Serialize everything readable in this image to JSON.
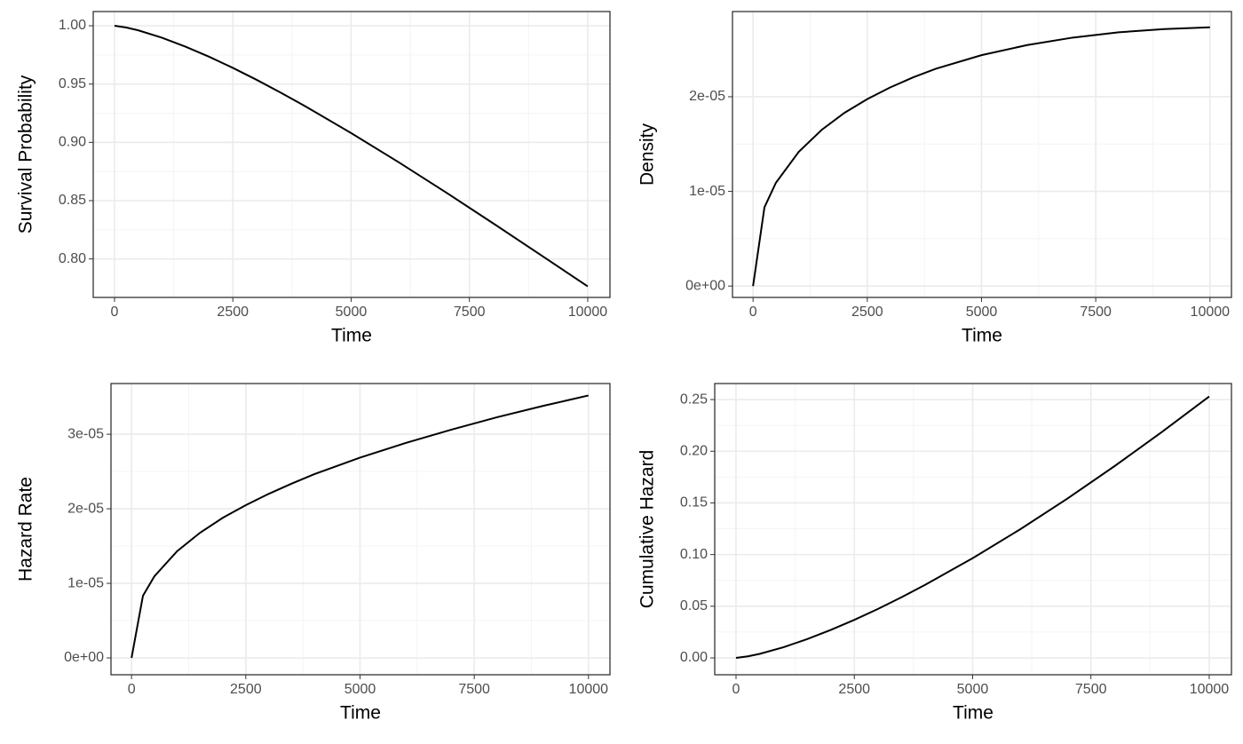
{
  "chart_data": [
    {
      "type": "line",
      "xlabel": "Time",
      "ylabel": "Survival Probability",
      "x": [
        0,
        250,
        500,
        1000,
        1500,
        2000,
        2500,
        3000,
        3500,
        4000,
        5000,
        6000,
        7000,
        8000,
        9000,
        10000
      ],
      "values": [
        1,
        0.9985,
        0.9961,
        0.9898,
        0.9821,
        0.9734,
        0.9639,
        0.9537,
        0.9429,
        0.9317,
        0.908,
        0.8831,
        0.8572,
        0.8306,
        0.8036,
        0.7765
      ],
      "color": "#000000",
      "grid": true,
      "xlim": [
        -450,
        10470
      ],
      "xticks": [
        0,
        2500,
        5000,
        7500,
        10000
      ],
      "ylim": [
        0.767,
        1.0122
      ],
      "yticks": [
        {
          "value": 0.8,
          "label": "0.80"
        },
        0.85,
        {
          "value": 0.9,
          "label": "0.90"
        },
        0.95,
        {
          "value": 1,
          "label": "1.00"
        }
      ]
    },
    {
      "type": "line",
      "xlabel": "Time",
      "ylabel": "Density",
      "x": [
        0,
        250,
        500,
        1000,
        1500,
        2000,
        2500,
        3000,
        3500,
        4000,
        5000,
        6000,
        7000,
        8000,
        9000,
        10000
      ],
      "values": [
        0,
        8.33e-06,
        1.091e-05,
        1.418e-05,
        1.649e-05,
        1.83e-05,
        1.975e-05,
        2.098e-05,
        2.204e-05,
        2.296e-05,
        2.439e-05,
        2.546e-05,
        2.625e-05,
        2.681e-05,
        2.715e-05,
        2.733e-05
      ],
      "color": "#000000",
      "grid": true,
      "xlim": [
        -450,
        10470
      ],
      "xticks": [
        0,
        2500,
        5000,
        7500,
        10000
      ],
      "ylim": [
        -1.2e-06,
        2.9e-05
      ],
      "yticks": [
        {
          "value": 0,
          "label": "0e+00"
        },
        {
          "value": 1e-05,
          "label": "1e-05"
        },
        {
          "value": 2e-05,
          "label": "2e-05"
        }
      ]
    },
    {
      "type": "line",
      "xlabel": "Time",
      "ylabel": "Hazard Rate",
      "x": [
        0,
        250,
        500,
        1000,
        1500,
        2000,
        2500,
        3000,
        3500,
        4000,
        5000,
        6000,
        7000,
        8000,
        9000,
        10000
      ],
      "values": [
        0,
        8.34e-06,
        1.095e-05,
        1.433e-05,
        1.679e-05,
        1.88e-05,
        2.049e-05,
        2.2e-05,
        2.337e-05,
        2.464e-05,
        2.686e-05,
        2.883e-05,
        3.062e-05,
        3.228e-05,
        3.379e-05,
        3.52e-05
      ],
      "color": "#000000",
      "grid": true,
      "xlim": [
        -450,
        10470
      ],
      "xticks": [
        0,
        2500,
        5000,
        7500,
        10000
      ],
      "ylim": [
        -2.26e-06,
        3.68e-05
      ],
      "yticks": [
        {
          "value": 0,
          "label": "0e+00"
        },
        {
          "value": 1e-05,
          "label": "1e-05"
        },
        {
          "value": 2e-05,
          "label": "2e-05"
        },
        {
          "value": 3e-05,
          "label": "3e-05"
        }
      ]
    },
    {
      "type": "line",
      "xlabel": "Time",
      "ylabel": "Cumulative Hazard",
      "x": [
        0,
        250,
        500,
        1000,
        1500,
        2000,
        2500,
        3000,
        3500,
        4000,
        5000,
        6000,
        7000,
        8000,
        9000,
        10000
      ],
      "values": [
        0,
        0.0015,
        0.0039,
        0.0103,
        0.0181,
        0.027,
        0.0368,
        0.0474,
        0.0588,
        0.0708,
        0.0965,
        0.1243,
        0.1541,
        0.1856,
        0.2186,
        0.253
      ],
      "color": "#000000",
      "grid": true,
      "xlim": [
        -450,
        10470
      ],
      "xticks": [
        0,
        2500,
        5000,
        7500,
        10000
      ],
      "ylim": [
        -0.0163,
        0.2655
      ],
      "yticks": [
        {
          "value": 0,
          "label": "0.00"
        },
        0.05,
        {
          "value": 0.1,
          "label": "0.10"
        },
        0.15,
        {
          "value": 0.2,
          "label": "0.20"
        },
        0.25
      ]
    }
  ]
}
